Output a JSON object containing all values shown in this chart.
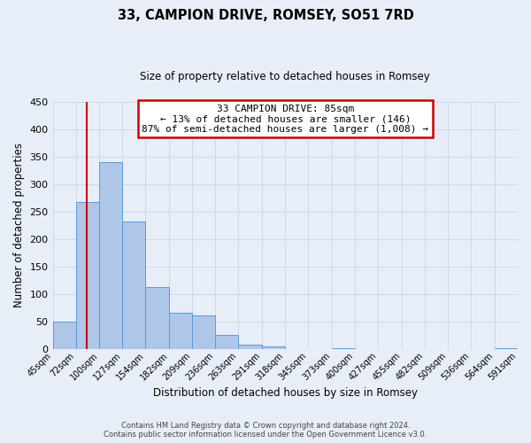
{
  "title": "33, CAMPION DRIVE, ROMSEY, SO51 7RD",
  "subtitle": "Size of property relative to detached houses in Romsey",
  "xlabel": "Distribution of detached houses by size in Romsey",
  "ylabel": "Number of detached properties",
  "bin_edges": [
    45,
    72,
    100,
    127,
    154,
    182,
    209,
    236,
    263,
    291,
    318,
    345,
    373,
    400,
    427,
    455,
    482,
    509,
    536,
    564,
    591
  ],
  "bin_heights": [
    50,
    267,
    340,
    232,
    113,
    66,
    61,
    25,
    7,
    5,
    0,
    0,
    2,
    0,
    0,
    0,
    0,
    0,
    0,
    2
  ],
  "bar_color": "#aec6e8",
  "bar_edgecolor": "#5b9bd5",
  "ylim": [
    0,
    450
  ],
  "yticks": [
    0,
    50,
    100,
    150,
    200,
    250,
    300,
    350,
    400,
    450
  ],
  "red_line_x": 85,
  "annotation_title": "33 CAMPION DRIVE: 85sqm",
  "annotation_line1": "← 13% of detached houses are smaller (146)",
  "annotation_line2": "87% of semi-detached houses are larger (1,008) →",
  "annotation_box_color": "#ffffff",
  "annotation_box_edgecolor": "#cc0000",
  "red_line_color": "#cc0000",
  "grid_color": "#cdd8e8",
  "background_color": "#e8eef8",
  "tick_labels": [
    "45sqm",
    "72sqm",
    "100sqm",
    "127sqm",
    "154sqm",
    "182sqm",
    "209sqm",
    "236sqm",
    "263sqm",
    "291sqm",
    "318sqm",
    "345sqm",
    "373sqm",
    "400sqm",
    "427sqm",
    "455sqm",
    "482sqm",
    "509sqm",
    "536sqm",
    "564sqm",
    "591sqm"
  ],
  "footer_line1": "Contains HM Land Registry data © Crown copyright and database right 2024.",
  "footer_line2": "Contains public sector information licensed under the Open Government Licence v3.0."
}
